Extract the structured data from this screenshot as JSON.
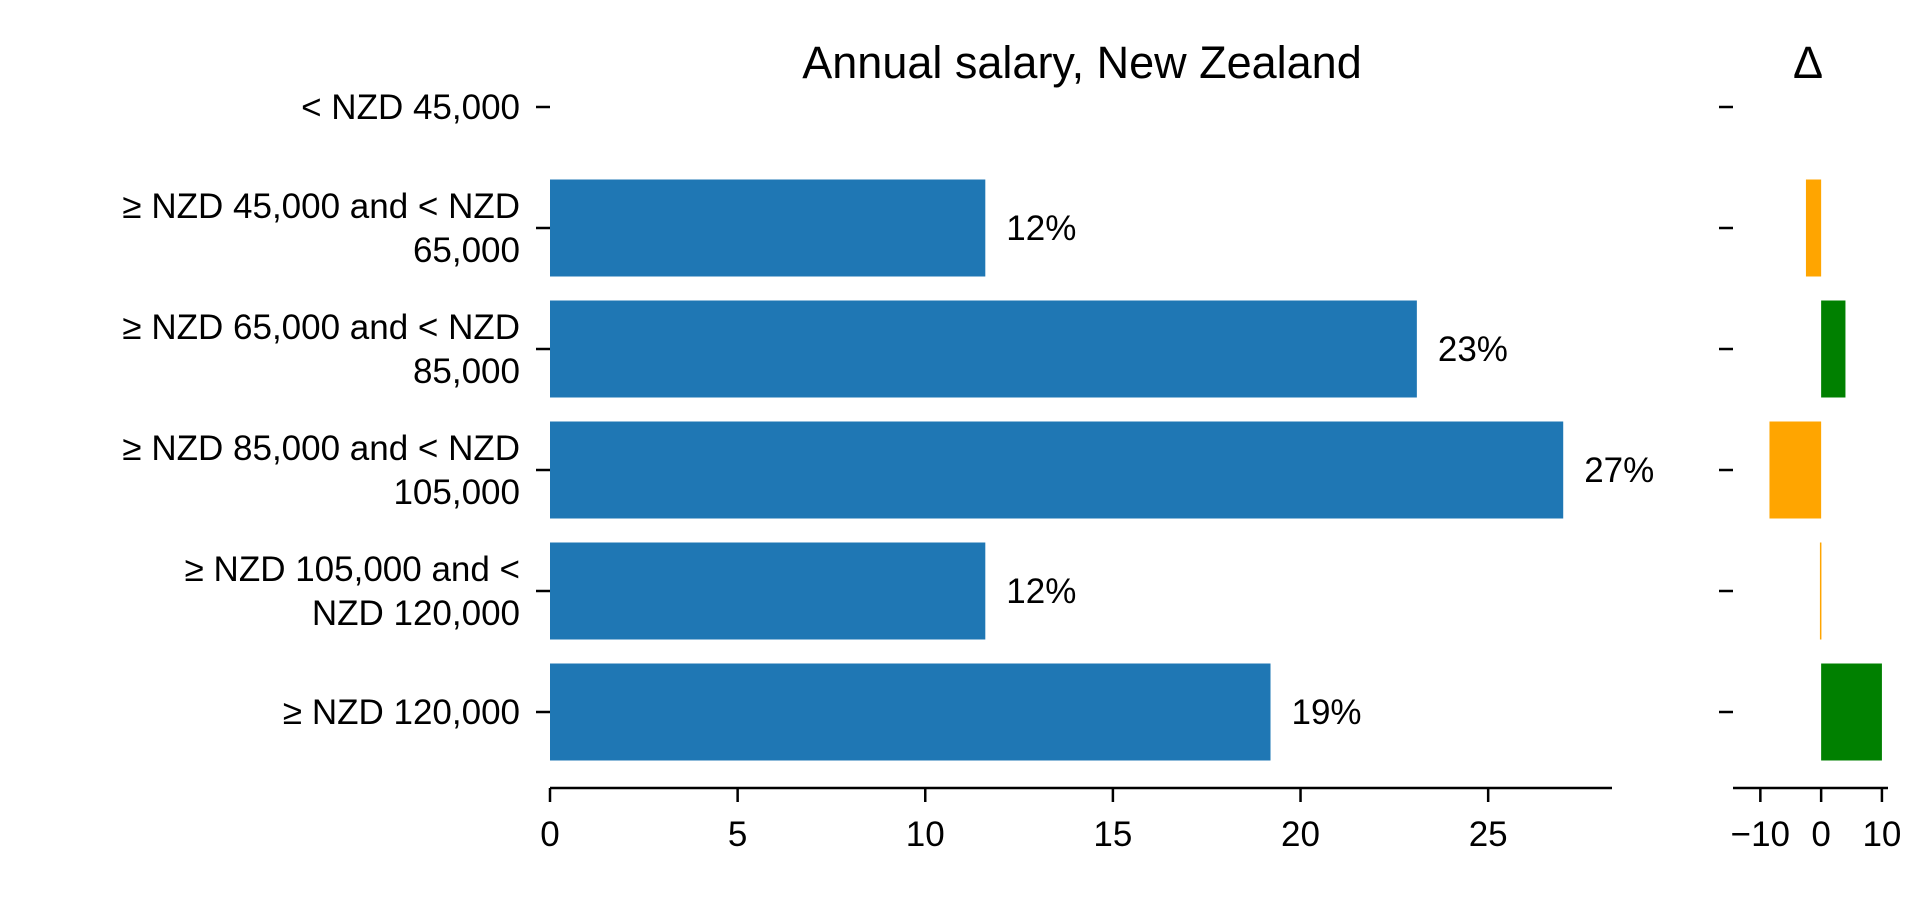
{
  "chart_data": [
    {
      "type": "bar",
      "orientation": "horizontal",
      "title": "Annual salary, New Zealand",
      "xlabel": "",
      "ylabel": "",
      "categories": [
        [
          "< NZD 45,000"
        ],
        [
          "≥ NZD 45,000 and < NZD",
          "65,000"
        ],
        [
          "≥ NZD 65,000 and < NZD",
          "85,000"
        ],
        [
          "≥ NZD 85,000 and < NZD",
          "105,000"
        ],
        [
          "≥ NZD 105,000 and <",
          "NZD 120,000"
        ],
        [
          "≥ NZD 120,000"
        ]
      ],
      "values": [
        0,
        11.6,
        23.1,
        27.0,
        11.6,
        19.2
      ],
      "value_labels": [
        "",
        "12%",
        "23%",
        "27%",
        "12%",
        "19%"
      ],
      "xlim": [
        0,
        28.3
      ],
      "xticks": [
        0,
        5,
        10,
        15,
        20,
        25
      ],
      "xtick_labels": [
        "0",
        "5",
        "10",
        "15",
        "20",
        "25"
      ],
      "grid": false,
      "legend": "none",
      "bar_color": "#1f77b4"
    },
    {
      "type": "bar",
      "orientation": "horizontal",
      "title": "Δ",
      "xlabel": "",
      "ylabel": "",
      "values": [
        0,
        -2.5,
        4.0,
        -8.5,
        -0.2,
        10.0
      ],
      "xlim": [
        -14.5,
        11
      ],
      "xticks": [
        -10,
        0,
        10
      ],
      "xtick_labels": [
        "−10",
        "0",
        "10"
      ],
      "grid": false,
      "legend": "none",
      "positive_color": "#008000",
      "negative_color": "#ffa500"
    }
  ]
}
